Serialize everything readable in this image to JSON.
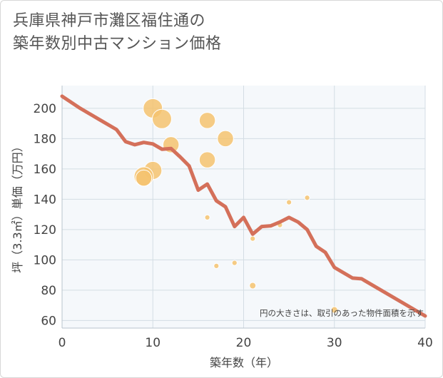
{
  "title_lines": [
    "兵庫県神戸市灘区福住通の",
    "築年数別中古マンション価格"
  ],
  "colors": {
    "trend": "#d4705a",
    "bubble": "#f4c36e",
    "grid": "#d4dde4",
    "plot_bg": "#f5f8fb"
  },
  "chart_data": {
    "type": "scatter",
    "title": "兵庫県神戸市灘区福住通の築年数別中古マンション価格",
    "xlabel": "築年数（年）",
    "ylabel": "坪（3.3㎡）単価（万円）",
    "xlim": [
      0,
      40
    ],
    "ylim": [
      55,
      215
    ],
    "x_ticks": [
      0,
      10,
      20,
      30,
      40
    ],
    "y_ticks": [
      60,
      80,
      100,
      120,
      140,
      160,
      180,
      200
    ],
    "grid": true,
    "annotation": "円の大きさは、取引のあった物件面積を示す",
    "series": [
      {
        "kind": "bubble",
        "points": [
          {
            "x": 10,
            "y": 200,
            "size": 3
          },
          {
            "x": 11,
            "y": 193,
            "size": 3
          },
          {
            "x": 12,
            "y": 176,
            "size": 2.5
          },
          {
            "x": 10,
            "y": 159,
            "size": 2.8
          },
          {
            "x": 9,
            "y": 155,
            "size": 3
          },
          {
            "x": 9,
            "y": 154,
            "size": 2.5
          },
          {
            "x": 16,
            "y": 192,
            "size": 2.5
          },
          {
            "x": 18,
            "y": 180,
            "size": 2.5
          },
          {
            "x": 16,
            "y": 166,
            "size": 2.5
          },
          {
            "x": 16,
            "y": 128,
            "size": 0.8
          },
          {
            "x": 17,
            "y": 96,
            "size": 0.8
          },
          {
            "x": 19,
            "y": 98,
            "size": 0.8
          },
          {
            "x": 21,
            "y": 114,
            "size": 0.8
          },
          {
            "x": 21,
            "y": 83,
            "size": 1
          },
          {
            "x": 24,
            "y": 123,
            "size": 0.8
          },
          {
            "x": 25,
            "y": 138,
            "size": 0.8
          },
          {
            "x": 27,
            "y": 141,
            "size": 0.8
          },
          {
            "x": 30,
            "y": 67,
            "size": 1
          }
        ]
      },
      {
        "kind": "line",
        "points": [
          {
            "x": 0,
            "y": 208
          },
          {
            "x": 2,
            "y": 200
          },
          {
            "x": 4,
            "y": 193
          },
          {
            "x": 6,
            "y": 186
          },
          {
            "x": 7,
            "y": 178
          },
          {
            "x": 8,
            "y": 176
          },
          {
            "x": 9,
            "y": 177.5
          },
          {
            "x": 10,
            "y": 176.5
          },
          {
            "x": 11,
            "y": 173
          },
          {
            "x": 12,
            "y": 173.5
          },
          {
            "x": 13,
            "y": 168
          },
          {
            "x": 14,
            "y": 162
          },
          {
            "x": 15,
            "y": 146
          },
          {
            "x": 16,
            "y": 150
          },
          {
            "x": 17,
            "y": 139
          },
          {
            "x": 18,
            "y": 135
          },
          {
            "x": 19,
            "y": 122
          },
          {
            "x": 20,
            "y": 128
          },
          {
            "x": 21,
            "y": 117
          },
          {
            "x": 22,
            "y": 122
          },
          {
            "x": 23,
            "y": 122.5
          },
          {
            "x": 24,
            "y": 125
          },
          {
            "x": 25,
            "y": 128
          },
          {
            "x": 26,
            "y": 125
          },
          {
            "x": 27,
            "y": 120
          },
          {
            "x": 28,
            "y": 109
          },
          {
            "x": 29,
            "y": 105
          },
          {
            "x": 30,
            "y": 95
          },
          {
            "x": 32,
            "y": 88
          },
          {
            "x": 33,
            "y": 87.5
          },
          {
            "x": 40,
            "y": 63
          }
        ]
      }
    ]
  }
}
